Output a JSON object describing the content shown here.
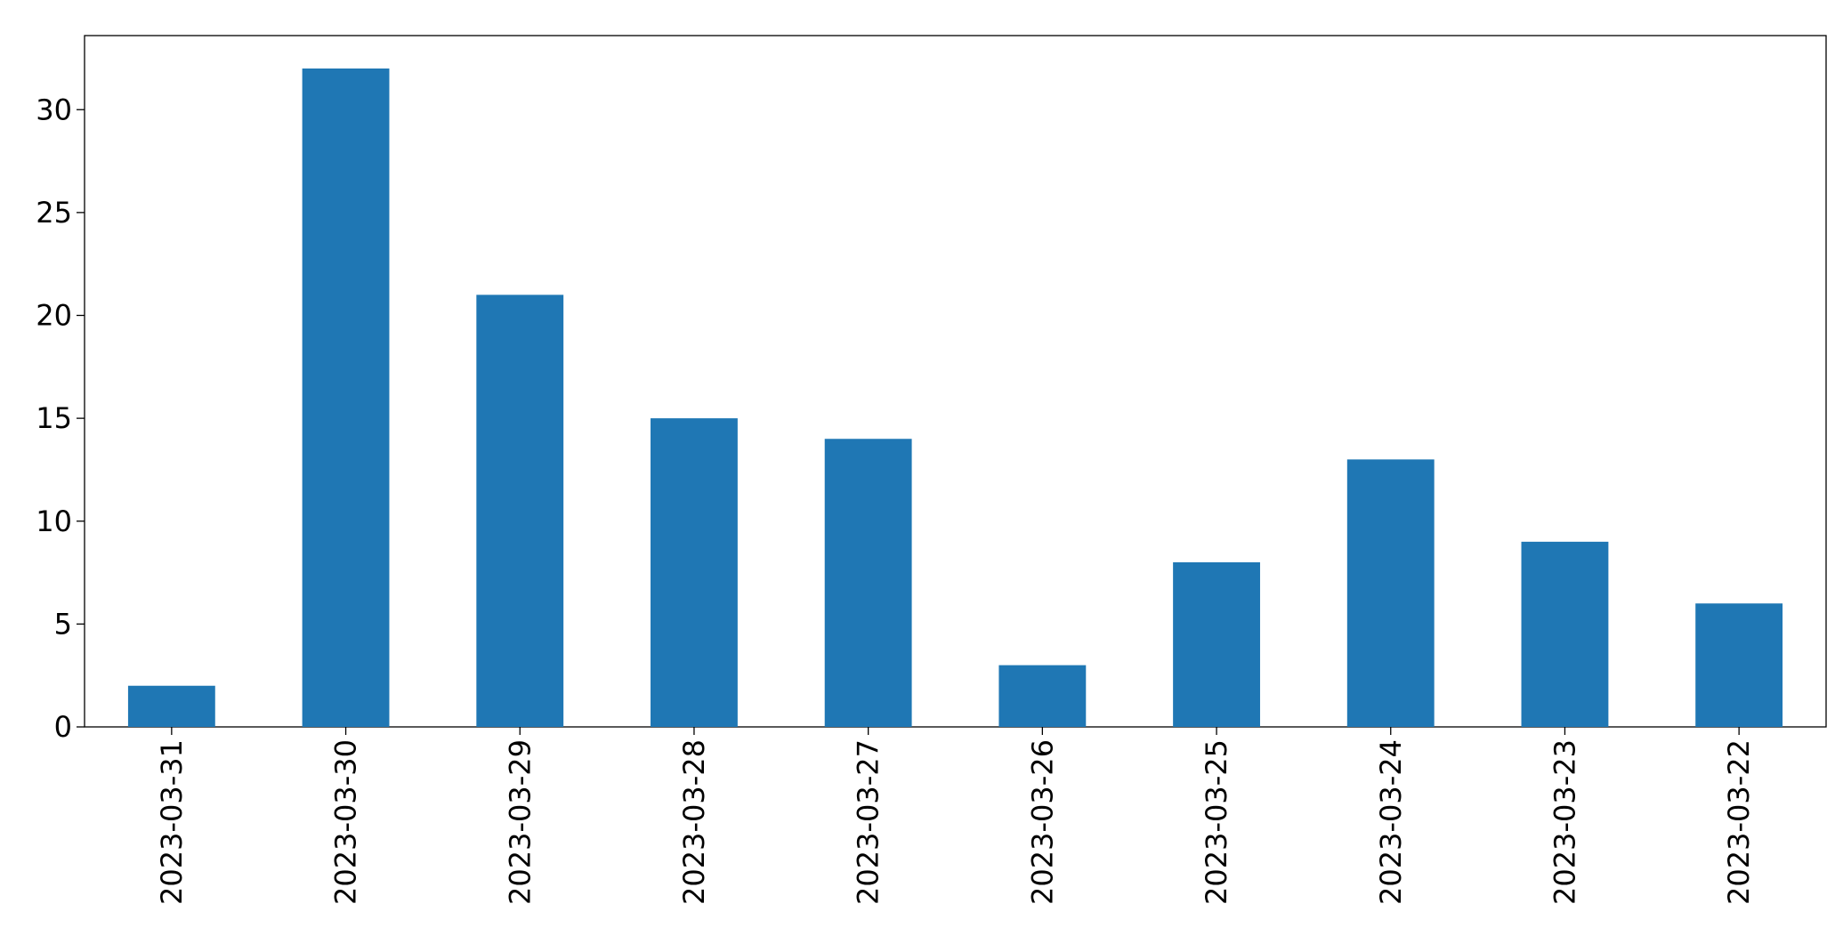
{
  "chart_data": {
    "type": "bar",
    "categories": [
      "2023-03-31",
      "2023-03-30",
      "2023-03-29",
      "2023-03-28",
      "2023-03-27",
      "2023-03-26",
      "2023-03-25",
      "2023-03-24",
      "2023-03-23",
      "2023-03-22"
    ],
    "values": [
      2,
      32,
      21,
      15,
      14,
      3,
      8,
      13,
      9,
      6
    ],
    "color": "#1f77b4",
    "ylim": [
      0,
      33.6
    ],
    "yticks": [
      0,
      5,
      10,
      15,
      20,
      25,
      30
    ],
    "grid": false
  }
}
